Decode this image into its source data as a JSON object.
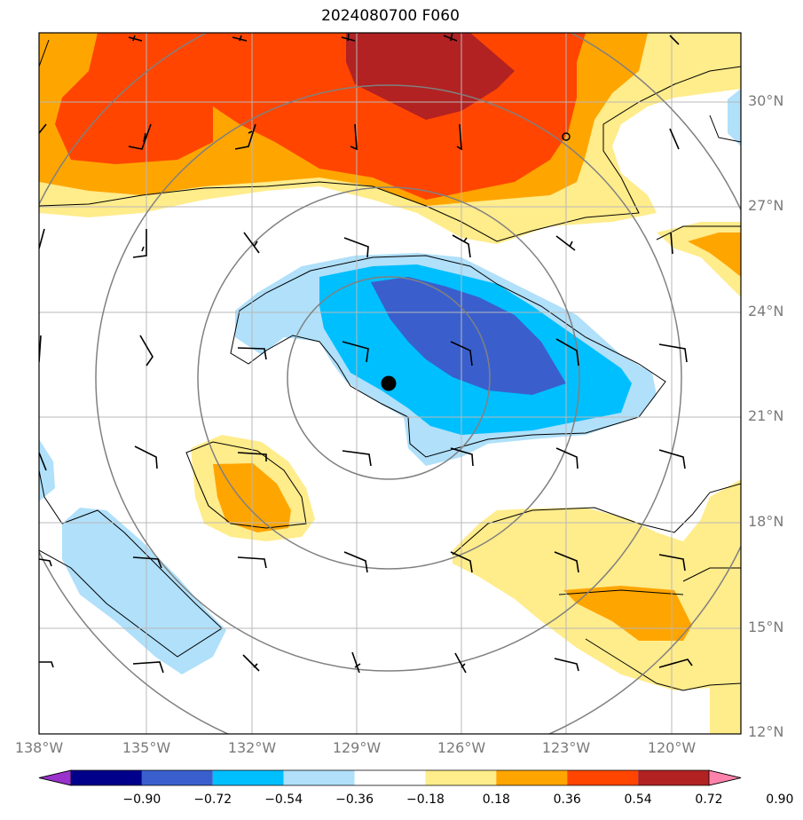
{
  "title": "2024080700 F060",
  "lat_labels": [
    "30°N",
    "27°N",
    "24°N",
    "21°N",
    "18°N",
    "15°N",
    "12°N"
  ],
  "lon_labels": [
    "138°W",
    "135°W",
    "132°W",
    "129°W",
    "126°W",
    "123°W",
    "120°W"
  ],
  "colorbar": {
    "ticks": [
      "−0.90",
      "−0.72",
      "−0.54",
      "−0.36",
      "−0.18",
      "0.18",
      "0.36",
      "0.54",
      "0.72",
      "0.90"
    ],
    "colors": [
      "#9a32cd",
      "#00008b",
      "#3a5fcd",
      "#00bfff",
      "#b0e0fa",
      "#ffffff",
      "#ffec8b",
      "#ffa500",
      "#ff4500",
      "#b22222",
      "#ff82ab"
    ]
  },
  "storm_center_icon": "storm-center-marker",
  "legend_icon": "wind-barb-icon"
}
